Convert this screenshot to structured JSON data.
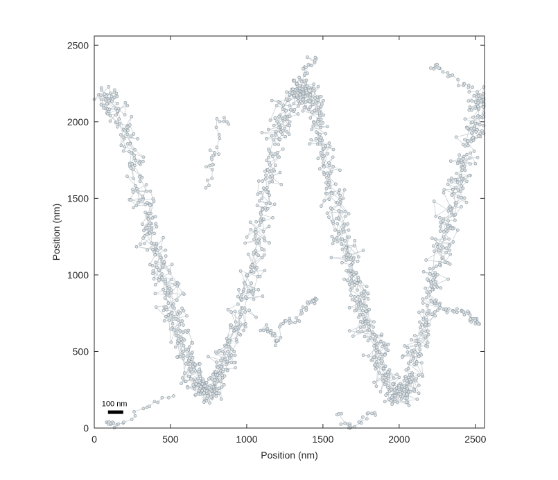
{
  "chart_data": {
    "type": "scatter",
    "title": "",
    "xlabel": "Position (nm)",
    "ylabel": "Position (nm)",
    "xlim": [
      0,
      2560
    ],
    "ylim": [
      0,
      2560
    ],
    "xticks": [
      0,
      500,
      1000,
      1500,
      2000,
      2500
    ],
    "yticks": [
      0,
      500,
      1000,
      1500,
      2000,
      2500
    ],
    "grid": false,
    "legend": "none",
    "marker_color": "#a9b4bb",
    "marker_edge_color": "#8f9ca4",
    "line_color": "#c9cfd3",
    "scale_bar": {
      "label": "100 nm",
      "length": 100
    },
    "series": [
      {
        "style": "connected-markers",
        "x": [
          60,
          110,
          180,
          240,
          300,
          340,
          380,
          420,
          460,
          500,
          540,
          580,
          620,
          660,
          700,
          740,
          780,
          820,
          860,
          900,
          950,
          1000,
          1040,
          1080,
          1120,
          1160,
          1200,
          1240,
          1280,
          1320,
          1360,
          1400,
          1440,
          1480,
          1520,
          1560,
          1600,
          1640,
          1680,
          1720,
          1760,
          1800,
          1840,
          1880,
          1920,
          1960,
          2000,
          2040,
          2080,
          2120,
          2160,
          2200,
          2240,
          2280,
          2320,
          2360,
          2400,
          2440,
          2480,
          2520,
          2550
        ],
        "y": [
          2170,
          2150,
          2000,
          1800,
          1560,
          1400,
          1250,
          1100,
          960,
          830,
          700,
          560,
          420,
          330,
          250,
          210,
          250,
          330,
          440,
          560,
          720,
          880,
          1060,
          1260,
          1470,
          1690,
          1880,
          2030,
          2140,
          2200,
          2210,
          2180,
          2100,
          1930,
          1740,
          1560,
          1380,
          1200,
          1060,
          920,
          800,
          680,
          560,
          440,
          320,
          240,
          200,
          240,
          340,
          480,
          640,
          820,
          1000,
          1180,
          1340,
          1500,
          1660,
          1820,
          1960,
          2080,
          2160
        ]
      },
      {
        "style": "connected-markers",
        "x": [
          730,
          760,
          780,
          800,
          820,
          870
        ],
        "y": [
          1540,
          1700,
          1760,
          1800,
          2020,
          2000
        ]
      },
      {
        "style": "connected-markers",
        "x": [
          80,
          100,
          120,
          240,
          360,
          520
        ],
        "y": [
          40,
          20,
          10,
          70,
          150,
          210
        ]
      },
      {
        "style": "connected-markers",
        "x": [
          1360,
          1400,
          1420,
          1450
        ],
        "y": [
          2280,
          2340,
          2380,
          2420
        ]
      },
      {
        "style": "connected-markers",
        "x": [
          1590,
          1650,
          1700,
          1780,
          1840
        ],
        "y": [
          100,
          30,
          10,
          70,
          100
        ]
      },
      {
        "style": "connected-markers",
        "x": [
          2230,
          2250,
          2340,
          2430,
          2480,
          2520
        ],
        "y": [
          2340,
          2360,
          2300,
          2250,
          2200,
          2170
        ]
      },
      {
        "style": "connected-markers",
        "x": [
          1100,
          1140,
          1170,
          1200,
          1250,
          1280,
          1320,
          1360,
          1400,
          1430,
          1460
        ],
        "y": [
          650,
          640,
          610,
          540,
          680,
          700,
          700,
          760,
          820,
          840,
          840
        ]
      },
      {
        "style": "connected-markers",
        "x": [
          2230,
          2300,
          2350,
          2400,
          2440,
          2480,
          2500,
          2520
        ],
        "y": [
          820,
          790,
          770,
          760,
          750,
          720,
          700,
          680
        ]
      }
    ]
  }
}
